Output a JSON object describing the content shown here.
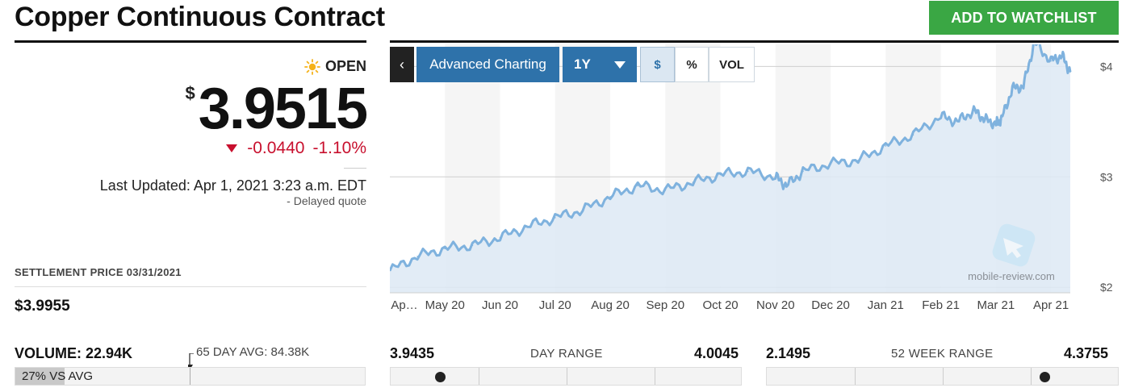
{
  "header": {
    "title": "Copper Continuous Contract",
    "watchlist_label": "ADD TO WATCHLIST"
  },
  "quote": {
    "status": "OPEN",
    "currency_symbol": "$",
    "price": "3.9515",
    "change": "-0.0440",
    "change_pct": "-1.10%",
    "last_updated": "Last Updated: Apr 1, 2021 3:23 a.m. EDT",
    "delayed": "-  Delayed quote",
    "settle_label": "SETTLEMENT PRICE 03/31/2021",
    "settle_value": "$3.9955"
  },
  "volume": {
    "label": "VOLUME: 22.94K",
    "avg_label": "65 DAY AVG: 84.38K",
    "pct_text": "27% VS AVG",
    "pct": 0.14
  },
  "day_range": {
    "low": "3.9435",
    "title": "DAY RANGE",
    "high": "4.0045",
    "position": 0.14
  },
  "week52_range": {
    "low": "2.1495",
    "title": "52 WEEK RANGE",
    "high": "4.3755",
    "position": 0.79
  },
  "controls": {
    "back": "‹",
    "advanced": "Advanced Charting",
    "range": "1Y",
    "dollar": "$",
    "percent": "%",
    "vol": "VOL"
  },
  "watermark": "mobile-review.com",
  "colors": {
    "line": "#7fb2de",
    "area": "#dde9f4",
    "green": "#3aa744",
    "red": "#c8102e",
    "blue": "#2e72aa"
  },
  "chart_data": {
    "type": "area",
    "x_labels": [
      "Ap…",
      "May 20",
      "Jun 20",
      "Jul 20",
      "Aug 20",
      "Sep 20",
      "Oct 20",
      "Nov 20",
      "Dec 20",
      "Jan 21",
      "Feb 21",
      "Mar 21",
      "Apr 21"
    ],
    "y_ticks": [
      "$2",
      "$3",
      "$4"
    ],
    "y_tick_values": [
      2,
      3,
      4
    ],
    "ylim": [
      1.95,
      4.2
    ],
    "grid": true,
    "x": [
      0,
      0.5,
      1,
      1.5,
      2,
      2.5,
      3,
      3.5,
      4,
      4.5,
      5,
      5.5,
      6,
      6.5,
      7,
      7.2,
      7.5,
      8,
      8.5,
      9,
      9.5,
      10,
      10.3,
      10.6,
      10.8,
      11,
      11.1,
      11.3,
      11.5,
      11.7,
      12,
      12.2,
      12.35
    ],
    "values": [
      2.15,
      2.28,
      2.35,
      2.38,
      2.45,
      2.55,
      2.63,
      2.7,
      2.82,
      2.92,
      2.88,
      2.95,
      3.02,
      3.05,
      3.0,
      2.92,
      3.05,
      3.12,
      3.15,
      3.28,
      3.38,
      3.55,
      3.5,
      3.6,
      3.52,
      3.48,
      3.52,
      3.8,
      3.82,
      4.22,
      4.05,
      4.1,
      3.95
    ]
  }
}
